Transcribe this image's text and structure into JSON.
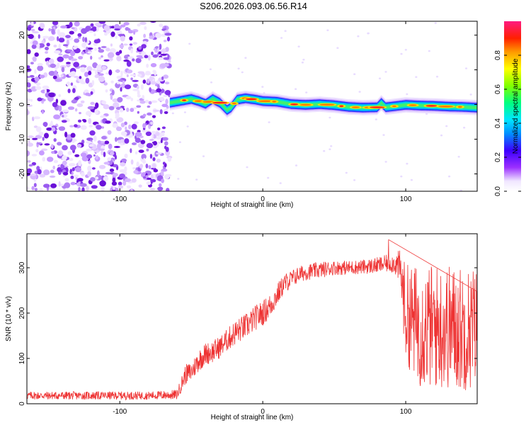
{
  "title": "S206.2026.093.06.56.R14",
  "colors": {
    "snr_line": "#ee3333",
    "noise_purple": "#8a2be2",
    "frame": "#000000"
  },
  "chart_data": [
    {
      "type": "heatmap",
      "name": "spectrogram",
      "xlabel": "Height of straight line (km)",
      "ylabel": "Frequency (Hz)",
      "xlim": [
        -165,
        150
      ],
      "ylim": [
        -25,
        24
      ],
      "xticks": [
        -100,
        0,
        100
      ],
      "xtick_labels": [
        "-100",
        "0",
        "100"
      ],
      "yticks": [
        -20,
        -10,
        0,
        10,
        20
      ],
      "ytick_labels": [
        "-20",
        "-10",
        "0",
        "10",
        "20"
      ],
      "noise_region_x": [
        -165,
        -65
      ],
      "signal_start_x": -65,
      "signal_track": {
        "x": [
          -65,
          -58,
          -50,
          -45,
          -40,
          -35,
          -30,
          -25,
          -22,
          -18,
          -12,
          -5,
          0,
          10,
          20,
          30,
          40,
          50,
          60,
          70,
          80,
          83,
          86,
          90,
          100,
          110,
          120,
          130,
          140,
          150
        ],
        "freq_hz": [
          0.5,
          1.0,
          1.6,
          1.0,
          0.2,
          1.6,
          0.5,
          -1.6,
          -0.8,
          1.4,
          1.8,
          1.4,
          1.0,
          0.8,
          0.1,
          -0.1,
          0.1,
          -0.2,
          -0.7,
          -0.9,
          -0.8,
          0.5,
          -0.8,
          -0.6,
          -0.1,
          -0.3,
          -0.4,
          -0.6,
          -0.7,
          -0.9
        ]
      },
      "colorbar": {
        "label": "Normalized spectral amplitude",
        "range": [
          0.0,
          1.0
        ],
        "ticks": [
          0.0,
          0.2,
          0.4,
          0.6,
          0.8
        ],
        "tick_labels": [
          "0.0",
          "0.2",
          "0.4",
          "0.6",
          "0.8"
        ]
      }
    },
    {
      "type": "line",
      "name": "snr",
      "xlabel": "Height of straight line (km)",
      "ylabel": "SNR (10 * v/v)",
      "xlim": [
        -165,
        150
      ],
      "ylim": [
        0,
        375
      ],
      "xticks": [
        -100,
        0,
        100
      ],
      "xtick_labels": [
        "-100",
        "0",
        "100"
      ],
      "yticks": [
        0,
        100,
        200,
        300
      ],
      "ytick_labels": [
        "0",
        "100",
        "200",
        "300"
      ],
      "series": [
        {
          "name": "SNR",
          "x": [
            -165,
            -140,
            -120,
            -100,
            -80,
            -60,
            -54,
            -50,
            -45,
            -40,
            -35,
            -30,
            -25,
            -20,
            -15,
            -10,
            -5,
            0,
            5,
            10,
            15,
            20,
            25,
            30,
            40,
            50,
            60,
            70,
            80,
            88,
            92,
            96,
            100,
            110,
            120,
            130,
            140,
            150
          ],
          "mean": [
            18,
            18,
            18,
            18,
            18,
            20,
            65,
            70,
            95,
            110,
            115,
            125,
            140,
            155,
            165,
            175,
            190,
            200,
            215,
            240,
            265,
            275,
            285,
            290,
            295,
            300,
            300,
            302,
            305,
            310,
            310,
            300,
            200,
            170,
            170,
            170,
            165,
            170
          ],
          "spread": [
            9,
            9,
            9,
            9,
            9,
            11,
            22,
            22,
            25,
            25,
            25,
            25,
            25,
            28,
            28,
            28,
            28,
            28,
            28,
            25,
            22,
            20,
            18,
            18,
            18,
            16,
            16,
            16,
            18,
            20,
            22,
            40,
            110,
            135,
            140,
            140,
            140,
            135
          ],
          "peak": {
            "x": 88,
            "y": 362
          }
        }
      ]
    }
  ]
}
